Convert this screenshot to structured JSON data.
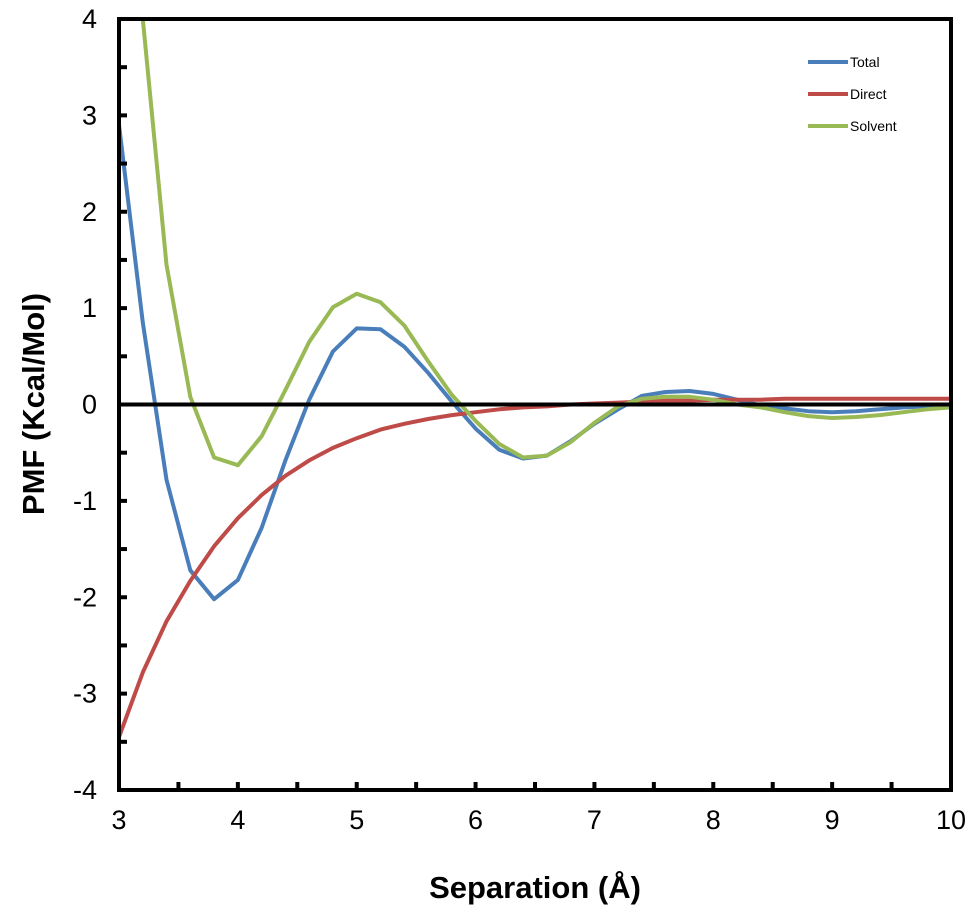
{
  "chart_data": {
    "type": "line",
    "title": "",
    "xlabel": "Separation (Å)",
    "ylabel": "PMF (Kcal/Mol)",
    "xlim": [
      3,
      10
    ],
    "ylim": [
      -4,
      4
    ],
    "x_ticks": [
      3,
      4,
      5,
      6,
      7,
      8,
      9,
      10
    ],
    "y_ticks": [
      -4,
      -3,
      -2,
      -1,
      0,
      1,
      2,
      3,
      4
    ],
    "x_minor_step": 0.5,
    "y_minor_step": 0.5,
    "grid": false,
    "zero_line": true,
    "legend_position": "top-right",
    "series": [
      {
        "name": "Total",
        "color": "#4a7ebb",
        "x": [
          3.0,
          3.2,
          3.4,
          3.6,
          3.8,
          4.0,
          4.2,
          4.4,
          4.6,
          4.8,
          5.0,
          5.2,
          5.4,
          5.6,
          5.8,
          6.0,
          6.2,
          6.4,
          6.6,
          6.8,
          7.0,
          7.2,
          7.4,
          7.6,
          7.8,
          8.0,
          8.2,
          8.4,
          8.6,
          8.8,
          9.0,
          9.2,
          9.4,
          9.6,
          9.8,
          10.0
        ],
        "y": [
          2.9,
          0.85,
          -0.78,
          -1.72,
          -2.02,
          -1.82,
          -1.28,
          -0.58,
          0.05,
          0.55,
          0.79,
          0.78,
          0.6,
          0.33,
          0.03,
          -0.25,
          -0.47,
          -0.56,
          -0.53,
          -0.38,
          -0.2,
          -0.05,
          0.09,
          0.13,
          0.14,
          0.11,
          0.05,
          -0.01,
          -0.04,
          -0.07,
          -0.08,
          -0.07,
          -0.05,
          -0.03,
          -0.02,
          -0.02
        ]
      },
      {
        "name": "Direct",
        "color": "#be4b48",
        "x": [
          3.0,
          3.2,
          3.4,
          3.6,
          3.8,
          4.0,
          4.2,
          4.4,
          4.6,
          4.8,
          5.0,
          5.2,
          5.4,
          5.6,
          5.8,
          6.0,
          6.2,
          6.4,
          6.6,
          6.8,
          7.0,
          7.2,
          7.4,
          7.6,
          7.8,
          8.0,
          8.2,
          8.4,
          8.6,
          8.8,
          9.0,
          9.2,
          9.4,
          9.6,
          9.8,
          10.0
        ],
        "y": [
          -3.45,
          -2.78,
          -2.25,
          -1.83,
          -1.47,
          -1.18,
          -0.94,
          -0.74,
          -0.58,
          -0.45,
          -0.35,
          -0.26,
          -0.2,
          -0.15,
          -0.11,
          -0.08,
          -0.05,
          -0.03,
          -0.02,
          0.0,
          0.01,
          0.02,
          0.03,
          0.04,
          0.04,
          0.05,
          0.05,
          0.05,
          0.06,
          0.06,
          0.06,
          0.06,
          0.06,
          0.06,
          0.06,
          0.06
        ]
      },
      {
        "name": "Solvent",
        "color": "#98b954",
        "x": [
          3.2,
          3.4,
          3.6,
          3.8,
          4.0,
          4.2,
          4.4,
          4.6,
          4.8,
          5.0,
          5.2,
          5.4,
          5.6,
          5.8,
          6.0,
          6.2,
          6.4,
          6.6,
          6.8,
          7.0,
          7.2,
          7.4,
          7.6,
          7.8,
          8.0,
          8.2,
          8.4,
          8.6,
          8.8,
          9.0,
          9.2,
          9.4,
          9.6,
          9.8,
          10.0
        ],
        "y": [
          4.0,
          1.45,
          0.08,
          -0.55,
          -0.63,
          -0.33,
          0.15,
          0.65,
          1.01,
          1.15,
          1.06,
          0.82,
          0.45,
          0.1,
          -0.17,
          -0.41,
          -0.55,
          -0.53,
          -0.39,
          -0.19,
          -0.02,
          0.06,
          0.08,
          0.08,
          0.05,
          0.0,
          -0.03,
          -0.08,
          -0.12,
          -0.14,
          -0.13,
          -0.11,
          -0.08,
          -0.05,
          -0.03
        ]
      }
    ]
  }
}
